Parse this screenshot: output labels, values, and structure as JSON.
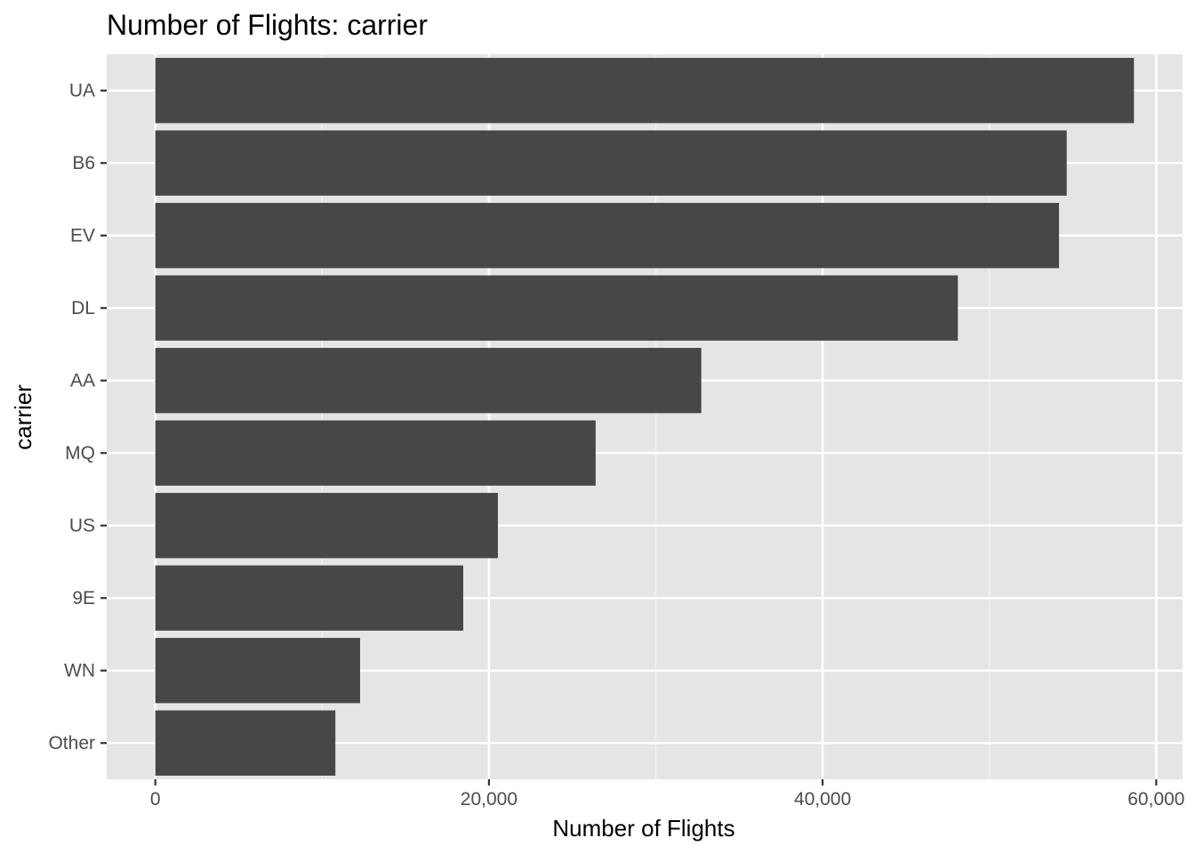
{
  "chart_data": {
    "type": "bar",
    "orientation": "horizontal",
    "title": "Number of Flights: carrier",
    "xlabel": "Number of Flights",
    "ylabel": "carrier",
    "categories": [
      "UA",
      "B6",
      "EV",
      "DL",
      "AA",
      "MQ",
      "US",
      "9E",
      "WN",
      "Other"
    ],
    "values": [
      58665,
      54635,
      54173,
      48110,
      32729,
      26397,
      20536,
      18460,
      12275,
      10796
    ],
    "xlim": [
      -2914,
      61579
    ],
    "x_ticks": [
      0,
      20000,
      40000,
      60000
    ],
    "x_tick_labels": [
      "0",
      "20,000",
      "40,000",
      "60,000"
    ],
    "grid": true,
    "legend": "none",
    "colors": {
      "bar": "#474747",
      "panel_background": "#e5e5e5",
      "grid_major": "#ffffff",
      "grid_minor": "#f2f2f2",
      "tick_text": "#4d4d4d"
    }
  }
}
